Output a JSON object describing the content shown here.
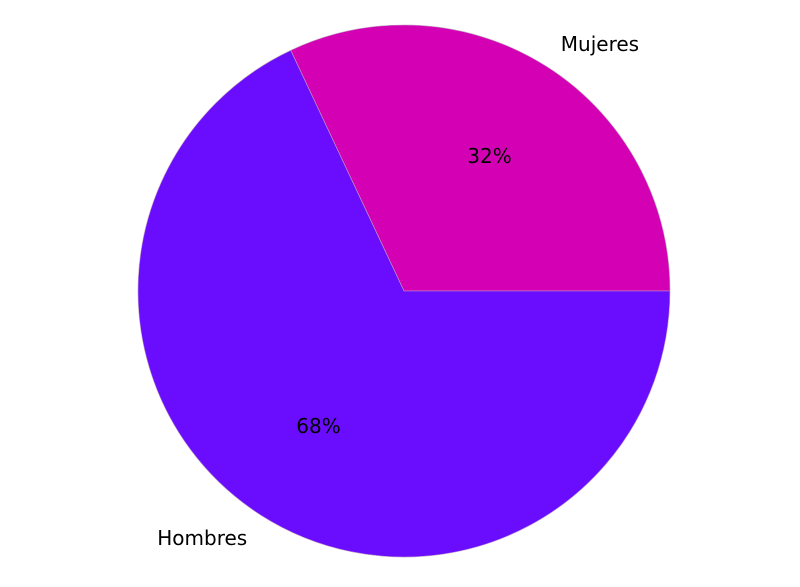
{
  "chart_data": {
    "type": "pie",
    "start_angle_deg": 0,
    "direction": "counterclockwise",
    "slices": [
      {
        "label": "Mujeres",
        "value": 32,
        "pct_label": "32%",
        "color": "#d400b4"
      },
      {
        "label": "Hombres",
        "value": 68,
        "pct_label": "68%",
        "color": "#6a0dff"
      }
    ],
    "legend": "none"
  }
}
